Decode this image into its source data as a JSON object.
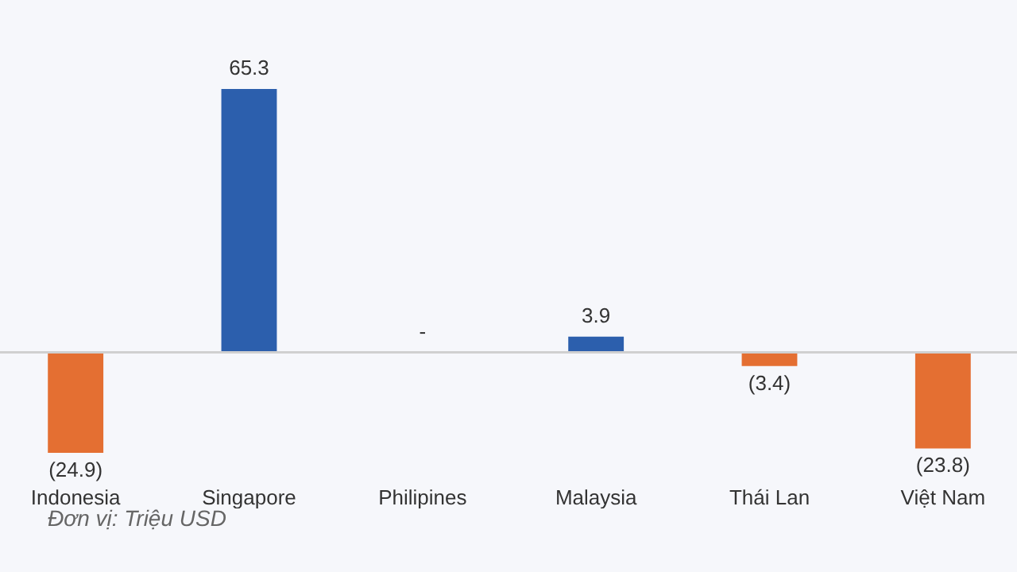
{
  "chart_data": {
    "type": "bar",
    "categories": [
      "Indonesia",
      "Singapore",
      "Philipines",
      "Malaysia",
      "Thái Lan",
      "Việt Nam"
    ],
    "values": [
      -24.9,
      65.3,
      0,
      3.9,
      -3.4,
      -23.8
    ],
    "colors": [
      "#e46f32",
      "#2c5fad",
      "#2c5fad",
      "#2c5fad",
      "#e46f32",
      "#e46f32"
    ],
    "value_labels": [
      "(24.9)",
      "65.3",
      "-",
      "3.9",
      "(3.4)",
      "(23.8)"
    ],
    "annotations": [
      "Đơn vị: Triệu USD"
    ]
  }
}
